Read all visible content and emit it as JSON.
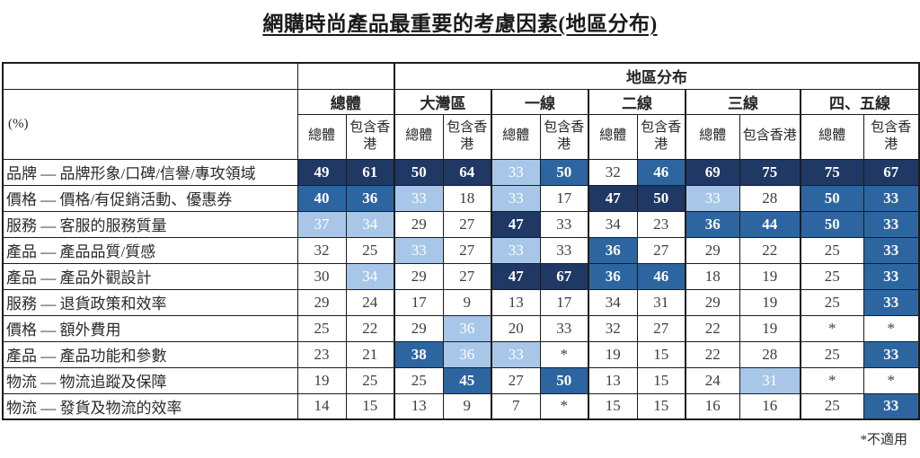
{
  "title": "網購時尚產品最重要的考慮因素(地區分布)",
  "footnote": "*不適用",
  "header": {
    "corner_label": "(%)",
    "region_header": "地區分布",
    "overall_group": "總體",
    "region_groups": [
      "大灣區",
      "一線",
      "二線",
      "三線",
      "四、五線"
    ],
    "sub_headers": [
      "總體",
      "包含香港"
    ]
  },
  "colors": {
    "dark_navy": "#1F3864",
    "medium_blue": "#2D65A0",
    "light_blue": "#A8C7E8",
    "white_cell": "#FFFFFF"
  },
  "chart_data": {
    "type": "heatmap",
    "title": "網購時尚產品最重要的考慮因素(地區分布)",
    "unit": "(%)",
    "column_groups": [
      "總體",
      "大灣區",
      "一線",
      "二線",
      "三線",
      "四、五線"
    ],
    "columns": [
      "總體-總體",
      "總體-包含香港",
      "大灣區-總體",
      "大灣區-包含香港",
      "一線-總體",
      "一線-包含香港",
      "二線-總體",
      "二線-包含香港",
      "三線-總體",
      "三線-包含香港",
      "四、五線-總體",
      "四、五線-包含香港"
    ],
    "shade_legend": "dark=深藍(最高), medium=中藍, light=淺藍, white=無底色",
    "rows": [
      {
        "label": "品牌 — 品牌形象/口碑/信譽/專攻領域",
        "values": [
          "49",
          "61",
          "50",
          "64",
          "33",
          "50",
          "32",
          "46",
          "69",
          "75",
          "75",
          "67"
        ],
        "shades": [
          "dark",
          "dark",
          "dark",
          "dark",
          "light",
          "medium",
          "white",
          "medium",
          "dark",
          "dark",
          "dark",
          "dark"
        ]
      },
      {
        "label": "價格 — 價格/有促銷活動、優惠券",
        "values": [
          "40",
          "36",
          "33",
          "18",
          "33",
          "17",
          "47",
          "50",
          "33",
          "28",
          "50",
          "33"
        ],
        "shades": [
          "medium",
          "medium",
          "light",
          "white",
          "light",
          "white",
          "dark",
          "dark",
          "light",
          "white",
          "medium",
          "medium"
        ]
      },
      {
        "label": "服務 — 客服的服務質量",
        "values": [
          "37",
          "34",
          "29",
          "27",
          "47",
          "33",
          "34",
          "23",
          "36",
          "44",
          "50",
          "33"
        ],
        "shades": [
          "light",
          "light",
          "white",
          "white",
          "dark",
          "white",
          "white",
          "white",
          "medium",
          "medium",
          "medium",
          "medium"
        ]
      },
      {
        "label": "產品 — 產品品質/質感",
        "values": [
          "32",
          "25",
          "33",
          "27",
          "33",
          "33",
          "36",
          "27",
          "29",
          "22",
          "25",
          "33"
        ],
        "shades": [
          "white",
          "white",
          "light",
          "white",
          "light",
          "white",
          "medium",
          "white",
          "white",
          "white",
          "white",
          "medium"
        ]
      },
      {
        "label": "產品 — 產品外觀設計",
        "values": [
          "30",
          "34",
          "29",
          "27",
          "47",
          "67",
          "36",
          "46",
          "18",
          "19",
          "25",
          "33"
        ],
        "shades": [
          "white",
          "light",
          "white",
          "white",
          "dark",
          "dark",
          "medium",
          "medium",
          "white",
          "white",
          "white",
          "medium"
        ]
      },
      {
        "label": "服務 — 退貨政策和效率",
        "values": [
          "29",
          "24",
          "17",
          "9",
          "13",
          "17",
          "34",
          "31",
          "29",
          "19",
          "25",
          "33"
        ],
        "shades": [
          "white",
          "white",
          "white",
          "white",
          "white",
          "white",
          "white",
          "white",
          "white",
          "white",
          "white",
          "medium"
        ]
      },
      {
        "label": "價格 — 額外費用",
        "values": [
          "25",
          "22",
          "29",
          "36",
          "20",
          "33",
          "32",
          "27",
          "22",
          "19",
          "*",
          "*"
        ],
        "shades": [
          "white",
          "white",
          "white",
          "light",
          "white",
          "white",
          "white",
          "white",
          "white",
          "white",
          "white",
          "white"
        ]
      },
      {
        "label": "產品 — 產品功能和參數",
        "values": [
          "23",
          "21",
          "38",
          "36",
          "33",
          "*",
          "19",
          "15",
          "22",
          "28",
          "25",
          "33"
        ],
        "shades": [
          "white",
          "white",
          "medium",
          "light",
          "light",
          "white",
          "white",
          "white",
          "white",
          "white",
          "white",
          "medium"
        ]
      },
      {
        "label": "物流 — 物流追蹤及保障",
        "values": [
          "19",
          "25",
          "25",
          "45",
          "27",
          "50",
          "13",
          "15",
          "24",
          "31",
          "*",
          "*"
        ],
        "shades": [
          "white",
          "white",
          "white",
          "medium",
          "white",
          "medium",
          "white",
          "white",
          "white",
          "light",
          "white",
          "white"
        ]
      },
      {
        "label": "物流 — 發貨及物流的效率",
        "values": [
          "14",
          "15",
          "13",
          "9",
          "7",
          "*",
          "15",
          "15",
          "16",
          "16",
          "25",
          "33"
        ],
        "shades": [
          "white",
          "white",
          "white",
          "white",
          "white",
          "white",
          "white",
          "white",
          "white",
          "white",
          "white",
          "medium"
        ]
      }
    ],
    "footnote": "*不適用"
  }
}
